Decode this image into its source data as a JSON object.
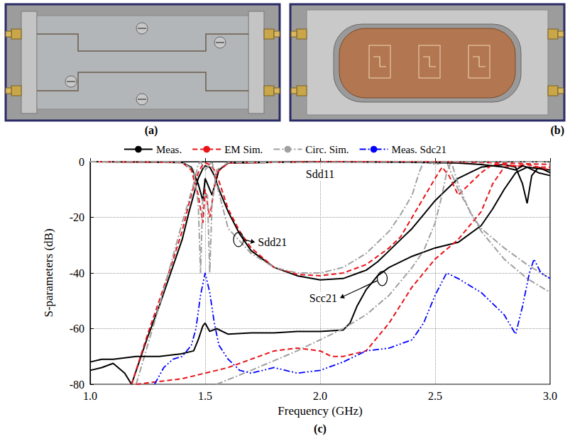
{
  "panels": {
    "a": {
      "label": "(a)"
    },
    "b": {
      "label": "(b)"
    },
    "c": {
      "label": "(c)"
    }
  },
  "chart_data": {
    "type": "line",
    "x_label": "Frequency (GHz)",
    "y_label": "S-parameters (dB)",
    "xlim": [
      1,
      3
    ],
    "xticks": [
      {
        "value": 1,
        "label": "1.0"
      },
      1.5,
      {
        "value": 2,
        "label": "2.0"
      },
      2.5,
      {
        "value": 3,
        "label": "3.0"
      }
    ],
    "ylim": [
      -80,
      0
    ],
    "yticks": [
      -80,
      -60,
      -40,
      -20,
      0
    ],
    "grid": true,
    "legend": "top",
    "annotations": [
      {
        "text": "Sdd11"
      },
      {
        "text": "Sdd21"
      },
      {
        "text": "Scc21"
      }
    ],
    "series": [
      {
        "name": "Meas.",
        "color": "#000000",
        "line_style": "solid",
        "x": [
          1.0,
          1.05,
          1.1,
          1.15,
          1.18,
          1.25,
          1.3,
          1.35,
          1.4,
          1.43,
          1.45,
          1.47,
          1.49,
          1.5,
          1.52,
          1.54,
          1.56,
          1.58,
          1.6,
          1.65,
          1.7,
          1.75,
          1.8,
          1.9,
          2.0,
          2.1,
          2.2,
          2.25,
          2.3,
          2.35,
          2.4,
          2.45,
          2.5,
          2.55,
          2.6,
          2.65,
          2.7,
          2.8,
          2.85,
          2.88,
          2.9,
          2.92,
          2.95,
          3.0
        ],
        "values": [
          -75,
          -74,
          -72.5,
          -76,
          -80,
          -63,
          -52,
          -40,
          -28,
          -18,
          -12,
          -6,
          -2.5,
          -1.5,
          -2,
          -5,
          -10,
          -14,
          -18,
          -26,
          -32,
          -35,
          -38,
          -41,
          -42.5,
          -42,
          -39,
          -36,
          -32,
          -28,
          -24,
          -19,
          -14,
          -10,
          -6,
          -4,
          -2,
          -1,
          -2,
          -8,
          -15,
          -5,
          -2,
          -4
        ]
      },
      {
        "name": "EM Sim.",
        "color": "#e8141a",
        "line_style": "dashed",
        "x": [
          1.18,
          1.25,
          1.3,
          1.35,
          1.4,
          1.43,
          1.45,
          1.47,
          1.49,
          1.5,
          1.52,
          1.54,
          1.56,
          1.6,
          1.65,
          1.7,
          1.8,
          1.9,
          2.0,
          2.1,
          2.2,
          2.3,
          2.35,
          2.4,
          2.45,
          2.5,
          2.53,
          2.56,
          2.6,
          2.65,
          2.7,
          2.75,
          2.8,
          2.9,
          3.0
        ],
        "values": [
          -80,
          -62,
          -50,
          -38,
          -25,
          -15,
          -9,
          -4,
          -1,
          -0.5,
          -1,
          -3,
          -7,
          -17,
          -25,
          -31,
          -38,
          -40.5,
          -41,
          -40,
          -37,
          -31,
          -27,
          -20,
          -13,
          -6,
          -2,
          -5,
          -12,
          -8,
          -4,
          -1,
          -1,
          -2,
          -2
        ]
      },
      {
        "name": "Circ. Sim.",
        "color": "#a0a0a0",
        "line_style": "dashdot",
        "x": [
          1.2,
          1.3,
          1.4,
          1.45,
          1.47,
          1.48,
          1.5,
          1.52,
          1.53,
          1.55,
          1.6,
          1.7,
          1.8,
          1.9,
          2.0,
          2.1,
          2.2,
          2.3,
          2.35,
          2.4,
          2.43,
          2.45,
          2.5,
          2.55,
          2.6,
          2.7,
          2.8,
          2.9,
          3.0
        ],
        "values": [
          -80,
          -52,
          -22,
          -8,
          -1,
          0,
          -3,
          -1,
          0,
          -8,
          -24,
          -33,
          -38,
          -40,
          -40,
          -38,
          -33,
          -25,
          -19,
          -12,
          -4,
          0,
          -1,
          0,
          -10,
          -25,
          -35,
          -42,
          -47
        ]
      },
      {
        "name": "Meas.",
        "color": "#000000",
        "line_style": "solid",
        "x": [
          1.0,
          1.05,
          1.1,
          1.2,
          1.3,
          1.4,
          1.45,
          1.47,
          1.49,
          1.5,
          1.52,
          1.55,
          1.6,
          1.7,
          1.8,
          1.9,
          2.0,
          2.1,
          2.13,
          2.16,
          2.2,
          2.25,
          2.3,
          2.4,
          2.5,
          2.6,
          2.7,
          2.75,
          2.8,
          2.85,
          2.9,
          3.0
        ],
        "values": [
          -72,
          -71,
          -71,
          -70,
          -70,
          -69,
          -68,
          -64,
          -59,
          -58,
          -61,
          -60,
          -62,
          -61.5,
          -61.5,
          -61,
          -61,
          -60.5,
          -58,
          -52,
          -46,
          -41,
          -38,
          -34,
          -31,
          -29,
          -23,
          -17,
          -10,
          -4,
          -2,
          -3
        ]
      },
      {
        "name": "EM Sim.",
        "color": "#e8141a",
        "line_style": "dashed",
        "x": [
          1.2,
          1.3,
          1.4,
          1.5,
          1.6,
          1.7,
          1.8,
          1.9,
          2.0,
          2.05,
          2.1,
          2.15,
          2.2,
          2.3,
          2.4,
          2.5,
          2.6,
          2.7,
          2.75,
          2.8,
          2.9,
          3.0
        ],
        "values": [
          -80,
          -79,
          -78,
          -76,
          -74,
          -71,
          -68,
          -67,
          -68,
          -70,
          -70,
          -69,
          -68,
          -58,
          -45,
          -35,
          -28,
          -18,
          -8,
          -2,
          -1,
          -3
        ]
      },
      {
        "name": "Circ. Sim.",
        "color": "#a0a0a0",
        "line_style": "dashdot",
        "x": [
          1.55,
          1.7,
          1.9,
          2.1,
          2.2,
          2.3,
          2.4,
          2.45,
          2.5,
          2.53,
          2.55,
          2.57,
          2.6,
          2.65,
          2.7,
          2.8,
          2.9,
          3.0
        ],
        "values": [
          -80,
          -75,
          -68,
          -60,
          -55,
          -48,
          -38,
          -32,
          -22,
          -12,
          -4,
          0,
          -8,
          -18,
          -24,
          -31,
          -37,
          -42
        ]
      },
      {
        "name": "Meas.",
        "color": "#000000",
        "line_style": "solid",
        "x": [
          1.0,
          1.4,
          1.44,
          1.47,
          1.49,
          1.5,
          1.51,
          1.53,
          1.56,
          1.6,
          2.0,
          2.5,
          2.6,
          2.7,
          2.8,
          2.85,
          2.88,
          2.9,
          2.95,
          3.0
        ],
        "values": [
          0,
          -0.3,
          -2,
          -8,
          -14,
          -6,
          -8,
          -12,
          -3,
          -0.5,
          0,
          -0.3,
          -0.5,
          -1,
          -2,
          -3,
          -1.5,
          -2,
          -4,
          -5
        ]
      },
      {
        "name": "EM Sim.",
        "color": "#e8141a",
        "line_style": "dashed",
        "x": [
          1.0,
          1.4,
          1.44,
          1.47,
          1.49,
          1.5,
          1.52,
          1.55,
          1.6,
          2.0,
          2.5,
          2.7,
          2.8,
          3.0
        ],
        "values": [
          0,
          -0.3,
          -3,
          -12,
          -22,
          -10,
          -20,
          -4,
          -0.5,
          0,
          0,
          -0.3,
          -0.5,
          -1
        ]
      },
      {
        "name": "Circ. Sim.",
        "color": "#a0a0a0",
        "line_style": "dashdot",
        "x": [
          1.0,
          1.4,
          1.45,
          1.47,
          1.48,
          1.49,
          1.51,
          1.52,
          1.53,
          1.55,
          1.6,
          3.0
        ],
        "values": [
          0,
          -0.2,
          -3,
          -15,
          -40,
          -12,
          -12,
          -40,
          -15,
          -3,
          -0.3,
          0
        ]
      },
      {
        "name": "Meas. Sdc21",
        "color": "#0000ff",
        "line_style": "dashdotdot",
        "x": [
          1.28,
          1.32,
          1.36,
          1.4,
          1.44,
          1.46,
          1.48,
          1.5,
          1.52,
          1.54,
          1.56,
          1.6,
          1.65,
          1.7,
          1.8,
          1.9,
          2.0,
          2.1,
          2.2,
          2.3,
          2.4,
          2.45,
          2.5,
          2.55,
          2.6,
          2.7,
          2.8,
          2.85,
          2.88,
          2.91,
          2.93,
          2.96,
          3.0
        ],
        "values": [
          -80,
          -74,
          -71,
          -70,
          -66,
          -60,
          -48,
          -40,
          -47,
          -58,
          -66,
          -71,
          -75,
          -76,
          -74,
          -76,
          -75,
          -72,
          -68,
          -67,
          -64,
          -58,
          -48,
          -40,
          -42,
          -47,
          -55,
          -62,
          -52,
          -40,
          -35,
          -40,
          -42
        ]
      }
    ]
  }
}
